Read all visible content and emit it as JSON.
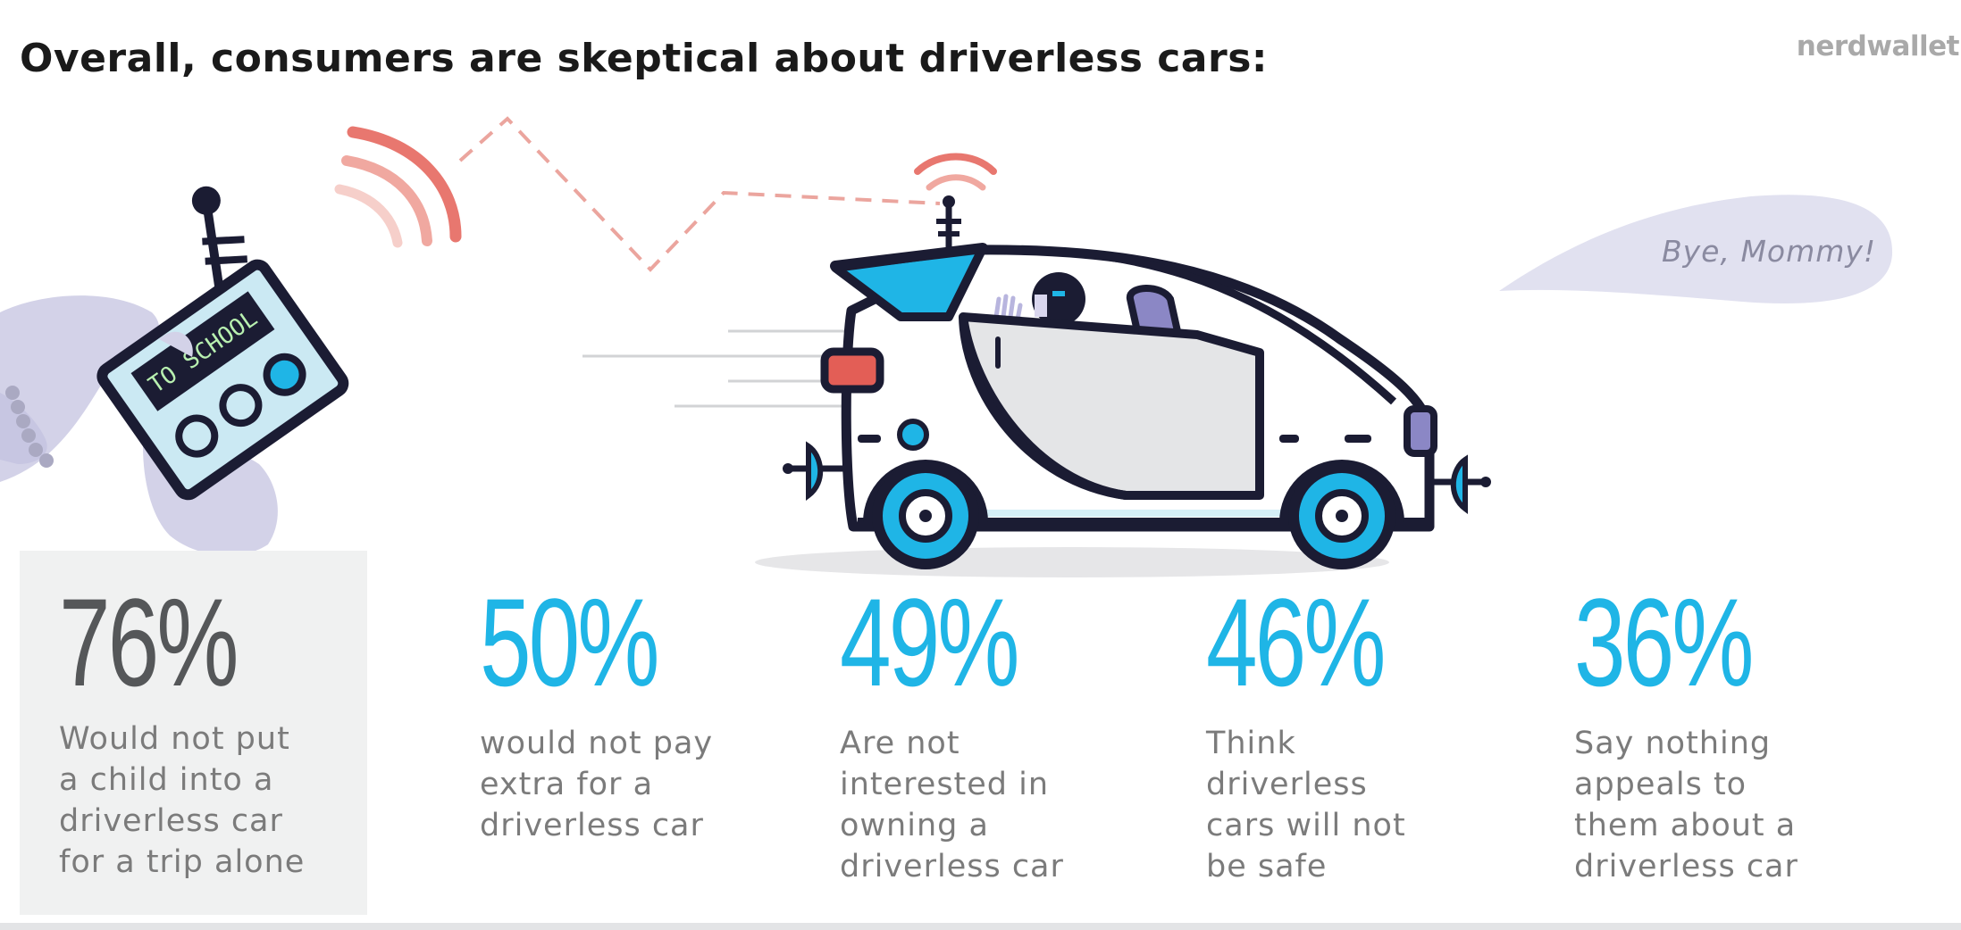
{
  "header": {
    "title": "Overall, consumers are skeptical about driverless cars:",
    "brand": "nerdwallet"
  },
  "illustration": {
    "remote_label": "TO SCHOOL",
    "speech_bubble": "Bye, Mommy!"
  },
  "colors": {
    "accent_blue": "#1fb5e6",
    "highlight_dark": "#555759",
    "signal_red": "#e8776f",
    "car_outline": "#1b1c33"
  },
  "stats": [
    {
      "value": "76%",
      "text_lines": [
        "Would not put",
        "a child into a",
        "driverless car",
        "for a trip alone"
      ]
    },
    {
      "value": "50%",
      "text_lines": [
        "would not pay",
        "extra for a",
        "driverless car"
      ]
    },
    {
      "value": "49%",
      "text_lines": [
        "Are not",
        "interested in",
        "owning a",
        "driverless car"
      ]
    },
    {
      "value": "46%",
      "text_lines": [
        "Think",
        "driverless",
        "cars will not",
        "be safe"
      ]
    },
    {
      "value": "36%",
      "text_lines": [
        "Say nothing",
        "appeals to",
        "them about a",
        "driverless car"
      ]
    }
  ]
}
